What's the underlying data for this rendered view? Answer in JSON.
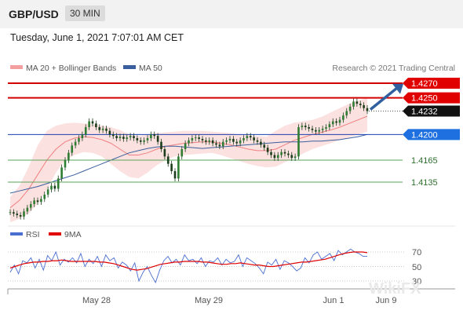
{
  "header": {
    "pair": "GBP/USD",
    "timeframe": "30 MIN",
    "datetime": "Tuesday, June 1, 2021 7:07:01 AM CET"
  },
  "colors": {
    "candle": "#2e7d32",
    "ma20": "#f08080",
    "bollinger_fill": "#fbdcdc",
    "ma50": "#3a5f9e",
    "resistance": "#d40000",
    "support_blue": "#1a3fb0",
    "support_green": "#5aa55a",
    "tag_red": "#e00000",
    "tag_blue": "#1e6fe0",
    "tag_black": "#111111",
    "arrow": "#2f5f9f",
    "rsi": "#4a6fd0",
    "rsi_ma": "#e00000"
  },
  "chart_data": [
    {
      "type": "candlestick",
      "title": "GBP/USD",
      "legend": [
        {
          "name": "MA 20 + Bollinger Bands",
          "color": "#f08080"
        },
        {
          "name": "MA 50",
          "color": "#3a5f9e"
        }
      ],
      "credit": "Research © 2021 Trading Central",
      "x_tick_labels": [
        "May 28",
        "May 29",
        "Jun 1",
        "Jun 9"
      ],
      "ylim": [
        1.4075,
        1.428
      ],
      "last_price": 1.4232,
      "levels": [
        {
          "label": "1.4270",
          "value": 1.427,
          "kind": "resistance",
          "tag": "red"
        },
        {
          "label": "1.4250",
          "value": 1.425,
          "kind": "resistance",
          "tag": "red"
        },
        {
          "label": "1.4232",
          "value": 1.4232,
          "kind": "last",
          "tag": "black"
        },
        {
          "label": "1.4200",
          "value": 1.42,
          "kind": "pivot",
          "tag": "blue"
        },
        {
          "label": "1.4165",
          "value": 1.4165,
          "kind": "support",
          "tag": "none"
        },
        {
          "label": "1.4135",
          "value": 1.4135,
          "kind": "support",
          "tag": "none"
        }
      ],
      "close": [
        1.4094,
        1.4092,
        1.409,
        1.4088,
        1.4095,
        1.41,
        1.4105,
        1.411,
        1.4108,
        1.4112,
        1.4118,
        1.4125,
        1.413,
        1.4126,
        1.414,
        1.4155,
        1.4165,
        1.4175,
        1.4185,
        1.419,
        1.4195,
        1.42,
        1.421,
        1.4218,
        1.4215,
        1.421,
        1.4206,
        1.4208,
        1.4205,
        1.42,
        1.4198,
        1.4195,
        1.4197,
        1.4194,
        1.4196,
        1.4198,
        1.4195,
        1.4192,
        1.419,
        1.4192,
        1.4195,
        1.42,
        1.4198,
        1.419,
        1.418,
        1.417,
        1.416,
        1.415,
        1.414,
        1.417,
        1.418,
        1.4188,
        1.4192,
        1.4195,
        1.4196,
        1.4194,
        1.4192,
        1.419,
        1.4192,
        1.4188,
        1.4186,
        1.4184,
        1.419,
        1.4192,
        1.4194,
        1.419,
        1.4188,
        1.4192,
        1.4195,
        1.4198,
        1.4196,
        1.4192,
        1.419,
        1.4186,
        1.4182,
        1.4176,
        1.4172,
        1.4168,
        1.4172,
        1.4176,
        1.4174,
        1.4172,
        1.4168,
        1.417,
        1.421,
        1.4212,
        1.421,
        1.4208,
        1.4206,
        1.4204,
        1.4206,
        1.4208,
        1.421,
        1.4214,
        1.4218,
        1.4216,
        1.422,
        1.4226,
        1.4232,
        1.4238,
        1.4245,
        1.4242,
        1.424,
        1.4236,
        1.4232
      ],
      "ma50": [
        1.412,
        1.4123,
        1.4126,
        1.4129,
        1.4133,
        1.4137,
        1.4141,
        1.4145,
        1.415,
        1.4155,
        1.416,
        1.4165,
        1.417,
        1.4175,
        1.4178,
        1.4181,
        1.4183,
        1.4184,
        1.4184,
        1.4183,
        1.4182,
        1.4181,
        1.4182,
        1.4183,
        1.4184,
        1.4185,
        1.4186,
        1.4187,
        1.4188,
        1.4189,
        1.419,
        1.419,
        1.419,
        1.4191,
        1.4191,
        1.4192,
        1.4193,
        1.4195,
        1.4197,
        1.42
      ],
      "ma20": [
        1.41,
        1.411,
        1.4125,
        1.4145,
        1.4165,
        1.418,
        1.419,
        1.4195,
        1.4197,
        1.4196,
        1.4193,
        1.4188,
        1.418,
        1.4172,
        1.4172,
        1.4175,
        1.418,
        1.4184,
        1.4186,
        1.4188,
        1.4189,
        1.419,
        1.419,
        1.4188,
        1.4186,
        1.4183,
        1.418,
        1.4178,
        1.4178,
        1.418,
        1.4186,
        1.4192,
        1.4196,
        1.42,
        1.4203,
        1.4206,
        1.421,
        1.4215,
        1.422,
        1.4225
      ],
      "bollinger_upper": [
        1.4115,
        1.413,
        1.4155,
        1.4185,
        1.4205,
        1.4212,
        1.4215,
        1.4216,
        1.4215,
        1.4214,
        1.4212,
        1.421,
        1.4206,
        1.42,
        1.4198,
        1.42,
        1.4202,
        1.4203,
        1.4204,
        1.4205,
        1.4205,
        1.4205,
        1.4204,
        1.4203,
        1.4202,
        1.42,
        1.4199,
        1.4198,
        1.4197,
        1.4205,
        1.4212,
        1.4216,
        1.4218,
        1.422,
        1.4224,
        1.423,
        1.4236,
        1.4242,
        1.4246,
        1.425
      ],
      "bollinger_lower": [
        1.408,
        1.4085,
        1.4092,
        1.4105,
        1.4125,
        1.4148,
        1.4165,
        1.4172,
        1.4176,
        1.4175,
        1.417,
        1.416,
        1.415,
        1.4142,
        1.414,
        1.4148,
        1.4158,
        1.4165,
        1.417,
        1.4172,
        1.4173,
        1.4174,
        1.4175,
        1.4172,
        1.4168,
        1.4164,
        1.416,
        1.4157,
        1.4155,
        1.4156,
        1.4162,
        1.4168,
        1.4174,
        1.418,
        1.4184,
        1.4188,
        1.4192,
        1.4196,
        1.42,
        1.4204
      ]
    },
    {
      "type": "line",
      "title": "RSI",
      "legend": [
        {
          "name": "RSI",
          "color": "#4a6fd0"
        },
        {
          "name": "9MA",
          "color": "#e00000"
        }
      ],
      "y_tick_labels": [
        "70",
        "50",
        "30"
      ],
      "ylim": [
        20,
        80
      ],
      "rsi": [
        42,
        52,
        40,
        58,
        55,
        62,
        48,
        60,
        45,
        65,
        58,
        70,
        52,
        60,
        56,
        62,
        55,
        68,
        50,
        60,
        54,
        64,
        50,
        66,
        58,
        62,
        48,
        56,
        52,
        44,
        55,
        30,
        42,
        50,
        38,
        28,
        45,
        58,
        64,
        55,
        60,
        52,
        66,
        58,
        60,
        54,
        62,
        50,
        58,
        56,
        62,
        52,
        60,
        55,
        57,
        66,
        50,
        62,
        58,
        54,
        48,
        40,
        56,
        52,
        60,
        46,
        58,
        55,
        50,
        44,
        48,
        62,
        55,
        66,
        70,
        60,
        64,
        68,
        58,
        72,
        66,
        70,
        74,
        70,
        68,
        64,
        64
      ],
      "rsi_ma": [
        48,
        50,
        52,
        54,
        55,
        56,
        56,
        57,
        57,
        58,
        58,
        59,
        58,
        57,
        57,
        57,
        57,
        57,
        57,
        56,
        56,
        55,
        54,
        52,
        50,
        48,
        46,
        45,
        46,
        47,
        49,
        51,
        53,
        54,
        55,
        56,
        56,
        57,
        57,
        57,
        57,
        56,
        56,
        55,
        54,
        53,
        53,
        54,
        54,
        55,
        54,
        53,
        52,
        52,
        51,
        50,
        50,
        51,
        52,
        53,
        54,
        55,
        56,
        56,
        57,
        58,
        59,
        60,
        62,
        64,
        66,
        68,
        69,
        70,
        70,
        70,
        69
      ]
    }
  ],
  "watermark": "WikiFX"
}
